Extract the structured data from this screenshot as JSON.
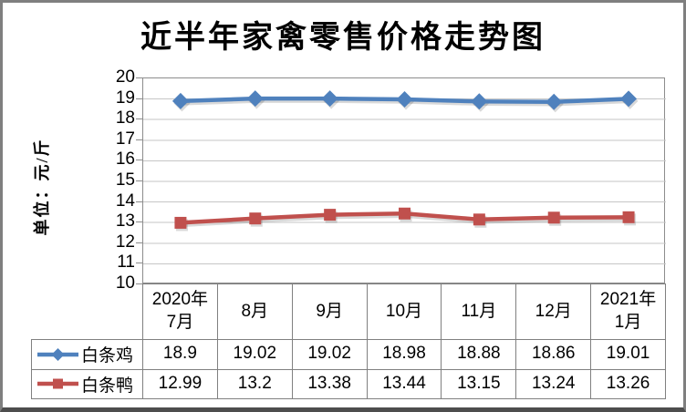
{
  "frame": {
    "background": "#FFFFFF",
    "border_color": "#7F7F7F",
    "bottom_border_color": "#4D4D4D"
  },
  "chart_data": {
    "type": "line",
    "title": "近半年家禽零售价格走势图",
    "xlabel": "",
    "ylabel": "单位：元/斤",
    "ylim": [
      10,
      20
    ],
    "ytick_interval": 1,
    "yticks": [
      20,
      19,
      18,
      17,
      16,
      15,
      14,
      13,
      12,
      11,
      10
    ],
    "grid": true,
    "gridline_color": "#C6C6C6",
    "axis_color": "#8C8C8C",
    "table_border_color": "#808080",
    "legend_position": "left-of-data-table",
    "data_table_shown": true,
    "categories": [
      "2020年\n7月",
      "8月",
      "9月",
      "10月",
      "11月",
      "12月",
      "2021年\n1月"
    ],
    "series": [
      {
        "name": "白条鸡",
        "color": "#4F81BD",
        "marker": "diamond",
        "values": [
          18.9,
          19.02,
          19.02,
          18.98,
          18.88,
          18.86,
          19.01
        ]
      },
      {
        "name": "白条鸭",
        "color": "#C0504D",
        "marker": "square",
        "values": [
          12.99,
          13.2,
          13.38,
          13.44,
          13.15,
          13.24,
          13.26
        ]
      }
    ]
  }
}
